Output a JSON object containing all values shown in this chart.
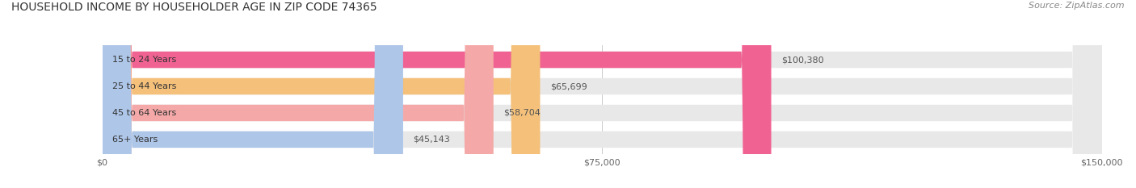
{
  "title": "HOUSEHOLD INCOME BY HOUSEHOLDER AGE IN ZIP CODE 74365",
  "source": "Source: ZipAtlas.com",
  "categories": [
    "15 to 24 Years",
    "25 to 44 Years",
    "45 to 64 Years",
    "65+ Years"
  ],
  "values": [
    100380,
    65699,
    58704,
    45143
  ],
  "bar_colors": [
    "#f06292",
    "#f4c07a",
    "#f4a9a8",
    "#aec6e8"
  ],
  "bar_bg_color": "#e8e8e8",
  "value_labels": [
    "$100,380",
    "$65,699",
    "$58,704",
    "$45,143"
  ],
  "xlim": [
    0,
    150000
  ],
  "xticks": [
    0,
    75000,
    150000
  ],
  "xtick_labels": [
    "$0",
    "$75,000",
    "$150,000"
  ],
  "figsize": [
    14.06,
    2.33
  ],
  "dpi": 100,
  "title_fontsize": 10,
  "source_fontsize": 8,
  "label_fontsize": 8,
  "tick_fontsize": 8,
  "background_color": "#ffffff"
}
